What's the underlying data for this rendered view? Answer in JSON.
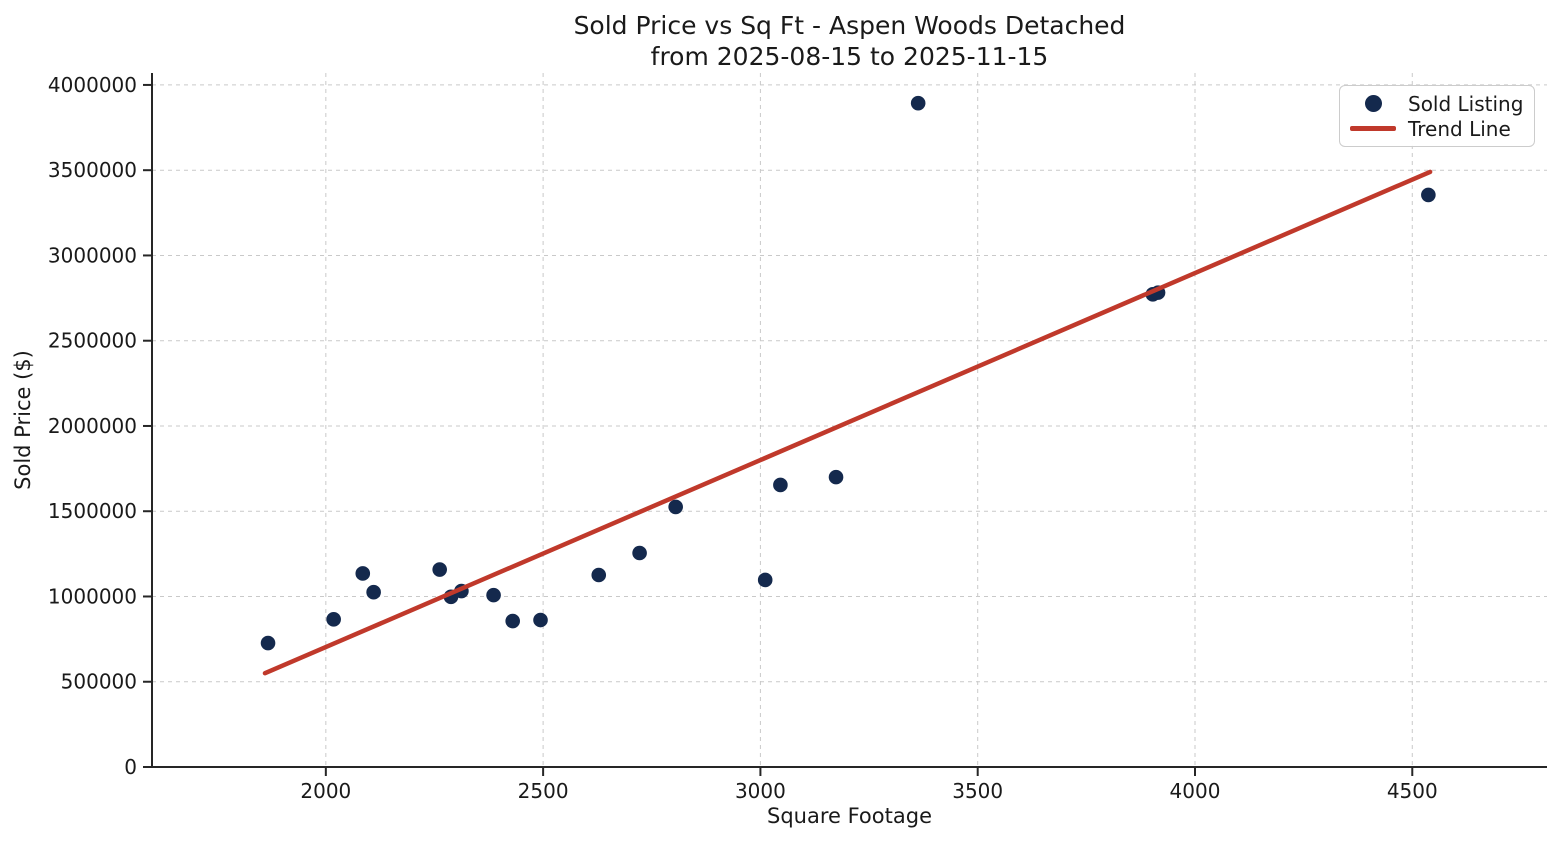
{
  "chart_data": {
    "type": "scatter",
    "title": "Sold Price vs Sq Ft - Aspen Woods Detached",
    "subtitle": "from 2025-08-15 to 2025-11-15",
    "xlabel": "Square Footage",
    "ylabel": "Sold Price ($)",
    "xlim": [
      1600,
      4810
    ],
    "ylim": [
      0,
      4070000
    ],
    "x_ticks": [
      2000,
      2500,
      3000,
      3500,
      4000,
      4500
    ],
    "y_ticks": [
      0,
      500000,
      1000000,
      1500000,
      2000000,
      2500000,
      3000000,
      3500000,
      4000000
    ],
    "grid": "on",
    "legend_position": "upper right",
    "legend": [
      {
        "label": "Sold Listing",
        "marker": "dot"
      },
      {
        "label": "Trend Line",
        "marker": "line"
      }
    ],
    "series": [
      {
        "name": "Sold Listing",
        "points": [
          {
            "sqft": 1867,
            "price": 727000
          },
          {
            "sqft": 2018,
            "price": 866000
          },
          {
            "sqft": 2085,
            "price": 1135000
          },
          {
            "sqft": 2110,
            "price": 1025000
          },
          {
            "sqft": 2262,
            "price": 1158000
          },
          {
            "sqft": 2288,
            "price": 998000
          },
          {
            "sqft": 2312,
            "price": 1032000
          },
          {
            "sqft": 2386,
            "price": 1008000
          },
          {
            "sqft": 2430,
            "price": 856000
          },
          {
            "sqft": 2494,
            "price": 862000
          },
          {
            "sqft": 2628,
            "price": 1126000
          },
          {
            "sqft": 2722,
            "price": 1255000
          },
          {
            "sqft": 2805,
            "price": 1525000
          },
          {
            "sqft": 3011,
            "price": 1097000
          },
          {
            "sqft": 3046,
            "price": 1654000
          },
          {
            "sqft": 3174,
            "price": 1700000
          },
          {
            "sqft": 3363,
            "price": 3893000
          },
          {
            "sqft": 3903,
            "price": 2772000
          },
          {
            "sqft": 3915,
            "price": 2782000
          },
          {
            "sqft": 4537,
            "price": 3355000
          }
        ]
      },
      {
        "name": "Trend Line",
        "x": [
          1860,
          4541
        ],
        "y": [
          550000,
          3490000
        ]
      }
    ],
    "colors": {
      "dot": "#14294d",
      "trend": "#c0392b",
      "grid": "#c9c9c9",
      "axis": "#262626",
      "text": "#1a1a1a"
    }
  }
}
